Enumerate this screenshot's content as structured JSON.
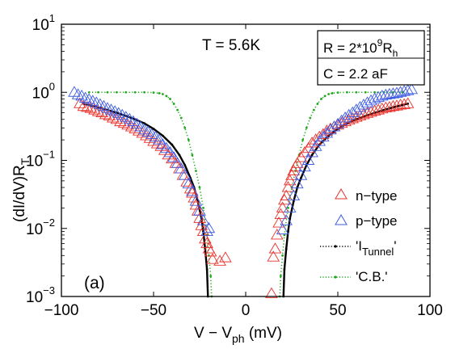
{
  "chart_data": {
    "type": "scatter",
    "title": "",
    "xlabel": "V − V",
    "xlabel_sub": "ph",
    "xlabel_unit": " (mV)",
    "ylabel": "(dI/dV)R",
    "ylabel_sub": "T",
    "xlim": [
      -100,
      100
    ],
    "ylim": [
      0.001,
      10
    ],
    "yscale": "log",
    "x_ticks": [
      -100,
      -50,
      0,
      50,
      100
    ],
    "x_tick_labels": [
      "−100",
      "−50",
      "0",
      "50",
      "100"
    ],
    "y_ticks": [
      0.001,
      0.01,
      0.1,
      1,
      10
    ],
    "y_tick_labels": [
      {
        "base": "10",
        "exp": "−3"
      },
      {
        "base": "10",
        "exp": "−2"
      },
      {
        "base": "10",
        "exp": "−1"
      },
      {
        "base": "10",
        "exp": "0"
      },
      {
        "base": "10",
        "exp": "1"
      }
    ],
    "annotations": {
      "temperature": "T = 5.6K",
      "panel": "(a)",
      "resistance": {
        "text": "R = 2*10",
        "sup": "9",
        "tail": "R",
        "sub": "h"
      },
      "capacitance": "C = 2.2 aF"
    },
    "legend": {
      "placement": "bottom-right",
      "entries": [
        {
          "key": "n",
          "label": "n−type"
        },
        {
          "key": "p",
          "label": "p−type"
        },
        {
          "key": "tunnel",
          "label": "'I",
          "sub": "Tunnel",
          "tail": "'"
        },
        {
          "key": "cb",
          "label": "'C.B.'"
        }
      ]
    },
    "series": [
      {
        "key": "n",
        "marker": "triangle",
        "color": "#e8312b",
        "x": [
          -90,
          -88,
          -86,
          -84,
          -82,
          -80,
          -78,
          -76,
          -74,
          -72,
          -70,
          -68,
          -66,
          -64,
          -62,
          -60,
          -58,
          -56,
          -54,
          -52,
          -50,
          -48,
          -46,
          -44,
          -42,
          -40,
          -38,
          -36,
          -34,
          -32,
          -30,
          -29,
          -28,
          -27,
          -26,
          -25,
          -24,
          -23,
          -22,
          -21,
          -20,
          -19,
          -18,
          -14,
          -11,
          14,
          15,
          16,
          17,
          18,
          19,
          20,
          21,
          22,
          23,
          24,
          25,
          26,
          27,
          28,
          30,
          32,
          34,
          36,
          38,
          40,
          42,
          44,
          46,
          48,
          50,
          52,
          54,
          56,
          58,
          60,
          62,
          64,
          66,
          68,
          70,
          72,
          74,
          76,
          78,
          80,
          82,
          84,
          86,
          88
        ],
        "y": [
          0.68,
          0.62,
          0.6,
          0.58,
          0.55,
          0.52,
          0.5,
          0.47,
          0.45,
          0.42,
          0.4,
          0.37,
          0.35,
          0.33,
          0.31,
          0.29,
          0.27,
          0.25,
          0.23,
          0.21,
          0.19,
          0.175,
          0.16,
          0.14,
          0.12,
          0.105,
          0.09,
          0.075,
          0.06,
          0.048,
          0.038,
          0.033,
          0.028,
          0.022,
          0.018,
          0.014,
          0.011,
          0.009,
          0.007,
          0.006,
          0.005,
          0.0045,
          0.0035,
          0.0033,
          0.0037,
          0.0011,
          0.0038,
          0.005,
          0.008,
          0.012,
          0.016,
          0.02,
          0.026,
          0.03,
          0.04,
          0.05,
          0.06,
          0.07,
          0.08,
          0.09,
          0.11,
          0.13,
          0.15,
          0.18,
          0.2,
          0.22,
          0.24,
          0.27,
          0.29,
          0.31,
          0.33,
          0.35,
          0.37,
          0.39,
          0.41,
          0.43,
          0.45,
          0.47,
          0.49,
          0.51,
          0.53,
          0.55,
          0.57,
          0.59,
          0.6,
          0.62,
          0.63,
          0.65,
          0.66,
          0.68
        ]
      },
      {
        "key": "p",
        "marker": "triangle",
        "color": "#3e5be3",
        "x": [
          -93,
          -91,
          -89,
          -87,
          -85,
          -83,
          -81,
          -79,
          -77,
          -75,
          -73,
          -71,
          -69,
          -67,
          -65,
          -63,
          -61,
          -59,
          -57,
          -55,
          -53,
          -51,
          -49,
          -47,
          -45,
          -43,
          -41,
          -39,
          -37,
          -35,
          -33,
          -31,
          -29,
          -27,
          -25,
          -23,
          -21,
          -20,
          20,
          22,
          24,
          26,
          28,
          30,
          32,
          34,
          36,
          38,
          40,
          42,
          44,
          46,
          48,
          50,
          52,
          54,
          56,
          58,
          60,
          62,
          64,
          66,
          68,
          70,
          72,
          74,
          76,
          78,
          80,
          82,
          84,
          86,
          88,
          90
        ],
        "y": [
          1.0,
          0.92,
          0.88,
          0.82,
          0.78,
          0.74,
          0.7,
          0.66,
          0.62,
          0.58,
          0.55,
          0.52,
          0.49,
          0.46,
          0.43,
          0.4,
          0.37,
          0.34,
          0.31,
          0.28,
          0.26,
          0.24,
          0.22,
          0.2,
          0.17,
          0.15,
          0.13,
          0.11,
          0.09,
          0.075,
          0.06,
          0.045,
          0.035,
          0.025,
          0.018,
          0.013,
          0.009,
          0.01,
          0.0095,
          0.013,
          0.02,
          0.03,
          0.045,
          0.06,
          0.08,
          0.1,
          0.13,
          0.16,
          0.19,
          0.22,
          0.25,
          0.28,
          0.31,
          0.34,
          0.38,
          0.42,
          0.46,
          0.5,
          0.55,
          0.6,
          0.65,
          0.7,
          0.75,
          0.8,
          0.84,
          0.88,
          0.91,
          0.93,
          0.95,
          0.97,
          1.0,
          1.03,
          1.06,
          1.1
        ]
      },
      {
        "key": "tunnel",
        "marker": "dot",
        "color": "#000000",
        "x": [
          -88,
          -85,
          -80,
          -75,
          -70,
          -65,
          -60,
          -55,
          -50,
          -45,
          -40,
          -36,
          -33,
          -30,
          -28,
          -26,
          -24,
          -23,
          -22,
          -21,
          -20.5,
          20.5,
          21,
          22,
          23,
          24,
          26,
          28,
          30,
          33,
          36,
          40,
          45,
          50,
          55,
          60,
          65,
          70,
          75,
          80,
          85,
          88
        ],
        "y": [
          0.68,
          0.65,
          0.6,
          0.55,
          0.5,
          0.45,
          0.4,
          0.35,
          0.29,
          0.23,
          0.17,
          0.12,
          0.085,
          0.055,
          0.04,
          0.025,
          0.014,
          0.009,
          0.005,
          0.0025,
          0.001,
          0.001,
          0.0025,
          0.005,
          0.009,
          0.014,
          0.025,
          0.04,
          0.055,
          0.085,
          0.12,
          0.17,
          0.23,
          0.29,
          0.35,
          0.4,
          0.45,
          0.5,
          0.55,
          0.6,
          0.65,
          0.68
        ]
      },
      {
        "key": "cb",
        "marker": "dot",
        "color": "#1fa81f",
        "x": [
          -85,
          -80,
          -75,
          -70,
          -65,
          -60,
          -55,
          -50,
          -47,
          -45,
          -43,
          -41,
          -39,
          -37,
          -35,
          -33,
          -31,
          -29,
          -27,
          -25,
          -23,
          -21,
          -20,
          -19,
          -18.5,
          18.5,
          19,
          20,
          21,
          23,
          25,
          27,
          29,
          31,
          33,
          35,
          37,
          39,
          41,
          43,
          45,
          47,
          50,
          55,
          60,
          65,
          70,
          75,
          80,
          85
        ],
        "y": [
          1.0,
          1.0,
          1.0,
          1.0,
          1.0,
          1.0,
          1.0,
          0.99,
          0.97,
          0.94,
          0.88,
          0.8,
          0.68,
          0.55,
          0.42,
          0.3,
          0.2,
          0.12,
          0.07,
          0.04,
          0.02,
          0.008,
          0.004,
          0.002,
          0.001,
          0.001,
          0.002,
          0.004,
          0.008,
          0.02,
          0.04,
          0.07,
          0.12,
          0.2,
          0.3,
          0.42,
          0.55,
          0.68,
          0.8,
          0.88,
          0.94,
          0.97,
          0.99,
          1.0,
          1.0,
          1.0,
          1.0,
          1.0,
          1.0,
          1.0
        ]
      }
    ]
  }
}
